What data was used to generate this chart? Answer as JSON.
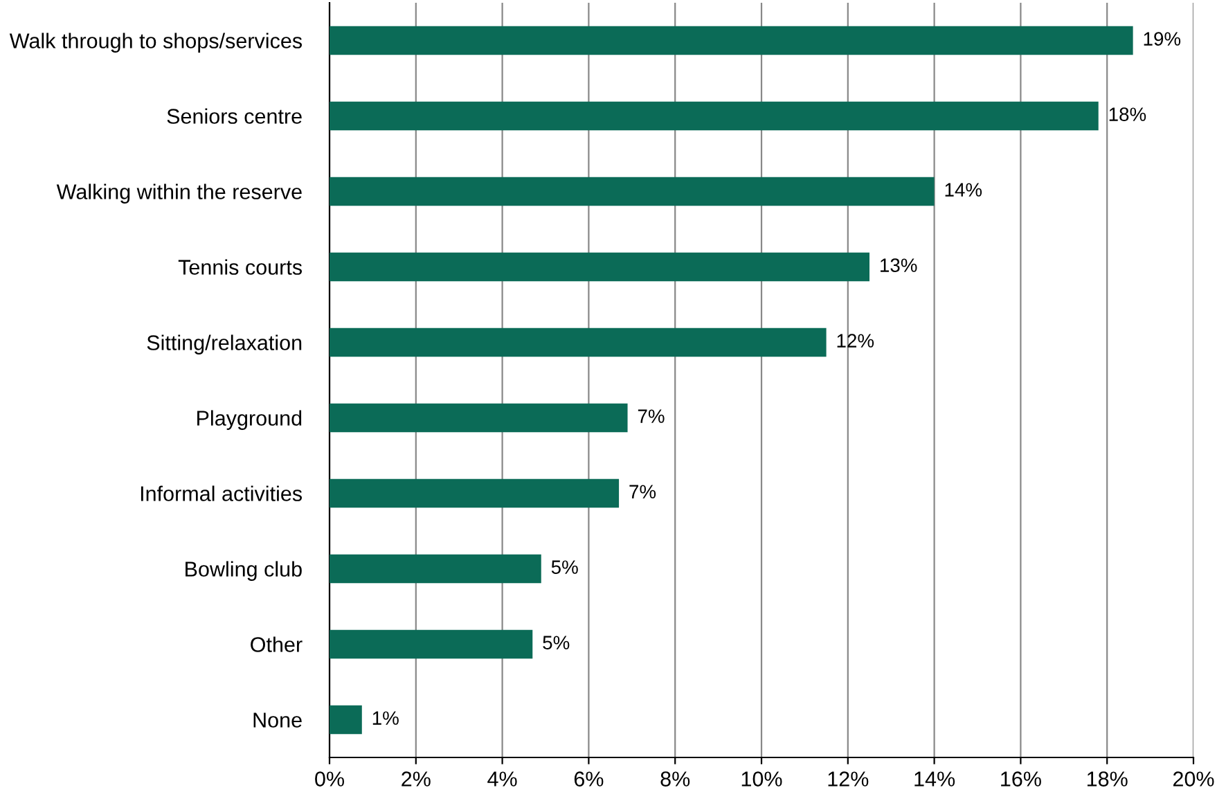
{
  "chart_data": {
    "type": "bar",
    "orientation": "horizontal",
    "categories": [
      "Walk through to shops/services",
      "Seniors centre",
      "Walking within the reserve",
      "Tennis courts",
      "Sitting/relaxation",
      "Playground",
      "Informal activities",
      "Bowling club",
      "Other",
      "None"
    ],
    "series": [
      {
        "color": "#0b6b57",
        "values": [
          18.6,
          17.8,
          14.0,
          12.5,
          11.5,
          6.9,
          6.7,
          4.9,
          4.7,
          0.75
        ],
        "value_labels": [
          "19%",
          "18%",
          "14%",
          "13%",
          "12%",
          "7%",
          "7%",
          "5%",
          "5%",
          "1%"
        ]
      }
    ],
    "xlim": [
      0,
      20
    ],
    "xticks": [
      {
        "value": 0,
        "label": "0%"
      },
      {
        "value": 2,
        "label": "2%"
      },
      {
        "value": 4,
        "label": "4%"
      },
      {
        "value": 6,
        "label": "6%"
      },
      {
        "value": 8,
        "label": "8%"
      },
      {
        "value": 10,
        "label": "10%"
      },
      {
        "value": 12,
        "label": "12%"
      },
      {
        "value": 14,
        "label": "14%"
      },
      {
        "value": 16,
        "label": "16%"
      },
      {
        "value": 18,
        "label": "18%"
      },
      {
        "value": 20,
        "label": "20%"
      }
    ],
    "grid": "x",
    "legend": false
  }
}
